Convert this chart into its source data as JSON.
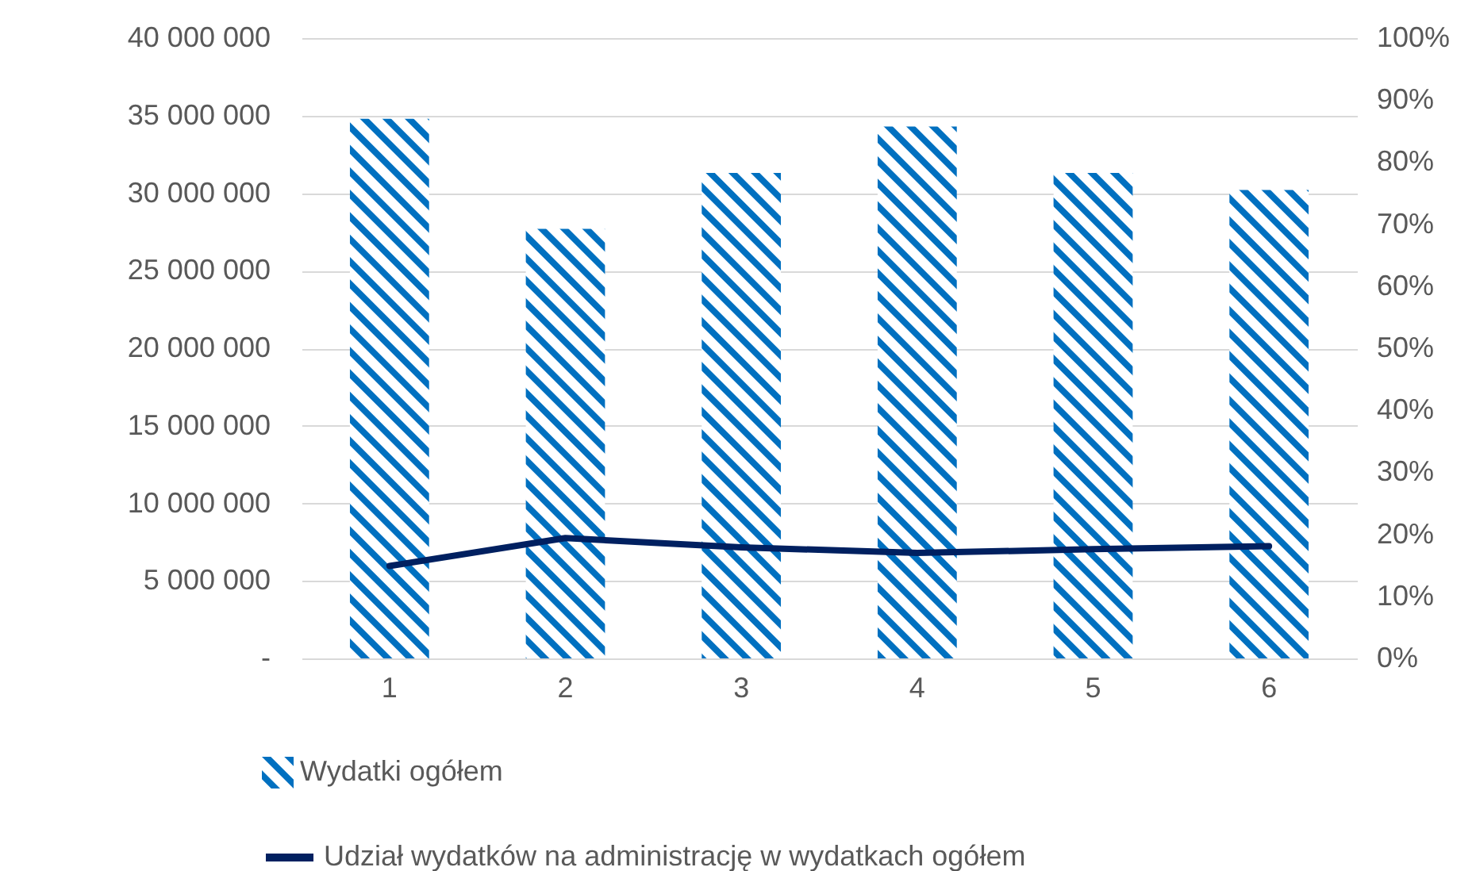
{
  "chart_data": {
    "type": "bar",
    "categories": [
      "1",
      "2",
      "3",
      "4",
      "5",
      "6"
    ],
    "series": [
      {
        "name": "Wydatki ogółem",
        "color": "#0070c0",
        "values": [
          34800000,
          27700000,
          31300000,
          34300000,
          31300000,
          30200000
        ]
      },
      {
        "name": "Udział wydatków na administrację w wydatkach ogółem",
        "type": "line",
        "axis": "y2",
        "color": "#002060",
        "values": [
          14.9,
          19.4,
          17.9,
          17.0,
          17.6,
          18.1
        ]
      }
    ],
    "ylim": [
      0,
      40000000
    ],
    "yticks": [
      {
        "value": 0,
        "label": "-"
      },
      {
        "value": 5000000,
        "label": "5 000 000"
      },
      {
        "value": 10000000,
        "label": "10 000 000"
      },
      {
        "value": 15000000,
        "label": "15 000 000"
      },
      {
        "value": 20000000,
        "label": "20 000 000"
      },
      {
        "value": 25000000,
        "label": "25 000 000"
      },
      {
        "value": 30000000,
        "label": "30 000 000"
      },
      {
        "value": 35000000,
        "label": "35 000 000"
      },
      {
        "value": 40000000,
        "label": "40 000 000"
      }
    ],
    "y2lim": [
      0,
      100
    ],
    "y2ticks": [
      {
        "value": 0,
        "label": "0%"
      },
      {
        "value": 10,
        "label": "10%"
      },
      {
        "value": 20,
        "label": "20%"
      },
      {
        "value": 30,
        "label": "30%"
      },
      {
        "value": 40,
        "label": "40%"
      },
      {
        "value": 50,
        "label": "50%"
      },
      {
        "value": 60,
        "label": "60%"
      },
      {
        "value": 70,
        "label": "70%"
      },
      {
        "value": 80,
        "label": "80%"
      },
      {
        "value": 90,
        "label": "90%"
      },
      {
        "value": 100,
        "label": "100%"
      }
    ],
    "grid": "y",
    "legend": "bottom",
    "line_style": "solid"
  }
}
